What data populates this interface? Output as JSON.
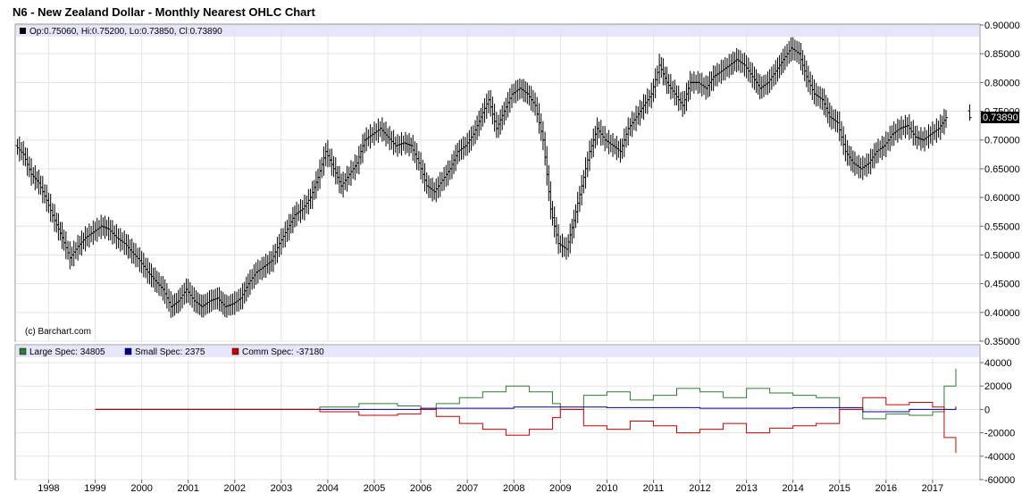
{
  "title": "N6 - New Zealand Dollar - Monthly Nearest OHLC Chart",
  "price_panel": {
    "legend": "Op:0.75060, Hi:0.75200, Lo:0.73850, Cl:0.73890",
    "last_price_label": "0.73890",
    "credit": "(c) Barchart.com"
  },
  "cot_panel": {
    "legend": [
      {
        "label": "Large Spec: 34805",
        "color": "#2e7d32"
      },
      {
        "label": "Small Spec: 2375",
        "color": "#00008b"
      },
      {
        "label": "Comm Spec: -37180",
        "color": "#cc0000"
      }
    ]
  },
  "chart_data": [
    {
      "type": "ohlc",
      "title": "N6 - New Zealand Dollar - Monthly Nearest OHLC Chart",
      "y_ticks": [
        "0.90000",
        "0.85000",
        "0.80000",
        "0.75000",
        "0.70000",
        "0.65000",
        "0.60000",
        "0.55000",
        "0.50000",
        "0.45000",
        "0.40000",
        "0.35000"
      ],
      "ylim": [
        0.35,
        0.9
      ],
      "x_ticks": [
        "1998",
        "1999",
        "2000",
        "2001",
        "2002",
        "2003",
        "2004",
        "2005",
        "2006",
        "2007",
        "2008",
        "2009",
        "2010",
        "2011",
        "2012",
        "2013",
        "2014",
        "2015",
        "2016",
        "2017"
      ],
      "xlim": [
        1997.3,
        2018.0
      ],
      "grid": true,
      "last": {
        "open": 0.7506,
        "high": 0.752,
        "low": 0.7385,
        "close": 0.7389
      },
      "close_series": [
        [
          1997.33,
          0.69
        ],
        [
          1997.5,
          0.675
        ],
        [
          1997.67,
          0.64
        ],
        [
          1997.83,
          0.625
        ],
        [
          1998.0,
          0.595
        ],
        [
          1998.17,
          0.56
        ],
        [
          1998.33,
          0.53
        ],
        [
          1998.5,
          0.495
        ],
        [
          1998.67,
          0.515
        ],
        [
          1998.83,
          0.53
        ],
        [
          1999.0,
          0.54
        ],
        [
          1999.17,
          0.55
        ],
        [
          1999.33,
          0.545
        ],
        [
          1999.5,
          0.53
        ],
        [
          1999.67,
          0.52
        ],
        [
          1999.83,
          0.505
        ],
        [
          2000.0,
          0.49
        ],
        [
          2000.17,
          0.47
        ],
        [
          2000.33,
          0.455
        ],
        [
          2000.5,
          0.44
        ],
        [
          2000.67,
          0.41
        ],
        [
          2000.83,
          0.42
        ],
        [
          2001.0,
          0.44
        ],
        [
          2001.17,
          0.42
        ],
        [
          2001.33,
          0.41
        ],
        [
          2001.5,
          0.42
        ],
        [
          2001.67,
          0.425
        ],
        [
          2001.83,
          0.41
        ],
        [
          2002.0,
          0.415
        ],
        [
          2002.17,
          0.425
        ],
        [
          2002.33,
          0.45
        ],
        [
          2002.5,
          0.47
        ],
        [
          2002.67,
          0.48
        ],
        [
          2002.83,
          0.49
        ],
        [
          2003.0,
          0.52
        ],
        [
          2003.17,
          0.545
        ],
        [
          2003.33,
          0.57
        ],
        [
          2003.5,
          0.58
        ],
        [
          2003.67,
          0.6
        ],
        [
          2003.83,
          0.635
        ],
        [
          2004.0,
          0.68
        ],
        [
          2004.17,
          0.65
        ],
        [
          2004.33,
          0.62
        ],
        [
          2004.5,
          0.64
        ],
        [
          2004.67,
          0.66
        ],
        [
          2004.83,
          0.7
        ],
        [
          2005.0,
          0.71
        ],
        [
          2005.17,
          0.72
        ],
        [
          2005.33,
          0.705
        ],
        [
          2005.5,
          0.69
        ],
        [
          2005.67,
          0.695
        ],
        [
          2005.83,
          0.69
        ],
        [
          2006.0,
          0.66
        ],
        [
          2006.17,
          0.62
        ],
        [
          2006.33,
          0.61
        ],
        [
          2006.5,
          0.63
        ],
        [
          2006.67,
          0.65
        ],
        [
          2006.83,
          0.68
        ],
        [
          2007.0,
          0.69
        ],
        [
          2007.17,
          0.71
        ],
        [
          2007.33,
          0.74
        ],
        [
          2007.5,
          0.77
        ],
        [
          2007.67,
          0.72
        ],
        [
          2007.83,
          0.75
        ],
        [
          2008.0,
          0.78
        ],
        [
          2008.17,
          0.79
        ],
        [
          2008.33,
          0.78
        ],
        [
          2008.5,
          0.76
        ],
        [
          2008.67,
          0.7
        ],
        [
          2008.83,
          0.58
        ],
        [
          2009.0,
          0.52
        ],
        [
          2009.17,
          0.51
        ],
        [
          2009.33,
          0.56
        ],
        [
          2009.5,
          0.62
        ],
        [
          2009.67,
          0.68
        ],
        [
          2009.83,
          0.72
        ],
        [
          2010.0,
          0.7
        ],
        [
          2010.17,
          0.69
        ],
        [
          2010.33,
          0.68
        ],
        [
          2010.5,
          0.72
        ],
        [
          2010.67,
          0.74
        ],
        [
          2010.83,
          0.76
        ],
        [
          2011.0,
          0.78
        ],
        [
          2011.17,
          0.83
        ],
        [
          2011.33,
          0.8
        ],
        [
          2011.5,
          0.78
        ],
        [
          2011.67,
          0.76
        ],
        [
          2011.83,
          0.8
        ],
        [
          2012.0,
          0.8
        ],
        [
          2012.17,
          0.79
        ],
        [
          2012.33,
          0.81
        ],
        [
          2012.5,
          0.82
        ],
        [
          2012.67,
          0.83
        ],
        [
          2012.83,
          0.84
        ],
        [
          2013.0,
          0.83
        ],
        [
          2013.17,
          0.81
        ],
        [
          2013.33,
          0.79
        ],
        [
          2013.5,
          0.8
        ],
        [
          2013.67,
          0.82
        ],
        [
          2013.83,
          0.84
        ],
        [
          2014.0,
          0.86
        ],
        [
          2014.17,
          0.85
        ],
        [
          2014.33,
          0.81
        ],
        [
          2014.5,
          0.78
        ],
        [
          2014.67,
          0.77
        ],
        [
          2014.83,
          0.74
        ],
        [
          2015.0,
          0.73
        ],
        [
          2015.17,
          0.68
        ],
        [
          2015.33,
          0.66
        ],
        [
          2015.5,
          0.65
        ],
        [
          2015.67,
          0.66
        ],
        [
          2015.83,
          0.68
        ],
        [
          2016.0,
          0.69
        ],
        [
          2016.17,
          0.71
        ],
        [
          2016.33,
          0.72
        ],
        [
          2016.5,
          0.725
        ],
        [
          2016.67,
          0.705
        ],
        [
          2016.83,
          0.7
        ],
        [
          2017.0,
          0.71
        ],
        [
          2017.17,
          0.72
        ],
        [
          2017.33,
          0.739
        ]
      ]
    },
    {
      "type": "line",
      "title": "",
      "y_ticks": [
        "40000",
        "20000",
        "0",
        "-20000",
        "-40000",
        "-60000"
      ],
      "ylim": [
        -60000,
        40000
      ],
      "x_ticks": [
        "1998",
        "1999",
        "2000",
        "2001",
        "2002",
        "2003",
        "2004",
        "2005",
        "2006",
        "2007",
        "2008",
        "2009",
        "2010",
        "2011",
        "2012",
        "2013",
        "2014",
        "2015",
        "2016",
        "2017"
      ],
      "series": [
        {
          "name": "Large Spec",
          "color": "#2e7d32",
          "x": [
            1999.0,
            2000.5,
            2003.83,
            2004.67,
            2005.5,
            2006.0,
            2006.33,
            2006.83,
            2007.33,
            2007.83,
            2008.33,
            2008.83,
            2009.0,
            2009.5,
            2010.0,
            2010.5,
            2011.0,
            2011.5,
            2012.0,
            2012.5,
            2013.0,
            2013.5,
            2014.0,
            2014.5,
            2015.0,
            2015.5,
            2016.0,
            2016.5,
            2017.0,
            2017.25,
            2017.5
          ],
          "y": [
            0,
            0,
            2000,
            5000,
            3000,
            0,
            5000,
            10000,
            15000,
            20000,
            15000,
            5000,
            0,
            12000,
            15000,
            8000,
            12000,
            18000,
            15000,
            10000,
            18000,
            14000,
            12000,
            10000,
            0,
            -8000,
            -4000,
            -5000,
            -2000,
            20000,
            34805
          ]
        },
        {
          "name": "Small Spec",
          "color": "#00008b",
          "x": [
            1999.0,
            2003.83,
            2006.0,
            2008.0,
            2010.0,
            2012.0,
            2014.0,
            2015.5,
            2016.5,
            2017.5
          ],
          "y": [
            0,
            0,
            1000,
            2000,
            1500,
            1000,
            1500,
            -2000,
            0,
            2375
          ]
        },
        {
          "name": "Comm Spec",
          "color": "#cc0000",
          "x": [
            1999.0,
            2000.5,
            2003.83,
            2004.67,
            2005.5,
            2006.0,
            2006.33,
            2006.83,
            2007.33,
            2007.83,
            2008.33,
            2008.83,
            2009.0,
            2009.5,
            2010.0,
            2010.5,
            2011.0,
            2011.5,
            2012.0,
            2012.5,
            2013.0,
            2013.5,
            2014.0,
            2014.5,
            2015.0,
            2015.5,
            2016.0,
            2016.5,
            2017.0,
            2017.25,
            2017.5
          ],
          "y": [
            0,
            0,
            -2000,
            -5000,
            -4000,
            0,
            -6000,
            -12000,
            -17000,
            -22000,
            -17000,
            -7000,
            0,
            -14000,
            -17000,
            -10000,
            -14000,
            -20000,
            -17000,
            -12000,
            -20000,
            -16000,
            -14000,
            -12000,
            0,
            10000,
            4000,
            6000,
            2000,
            -24000,
            -37180
          ]
        }
      ]
    }
  ]
}
